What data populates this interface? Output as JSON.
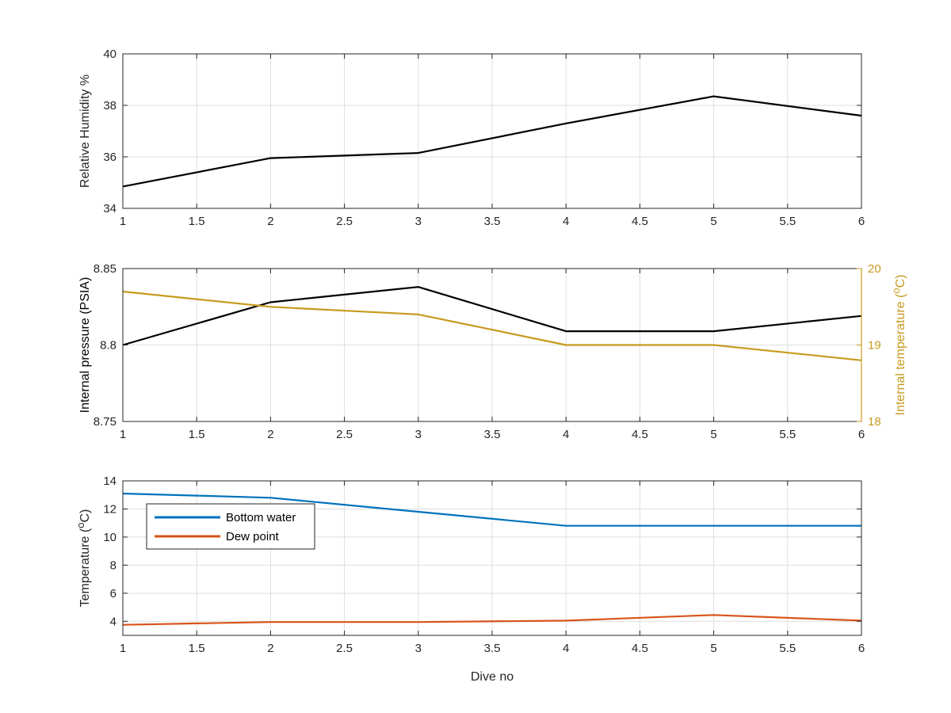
{
  "chart_data": [
    {
      "type": "line",
      "xlabel": "",
      "ylabel": "Relative Humidity %",
      "xlim": [
        1,
        6
      ],
      "ylim": [
        34,
        40
      ],
      "xticks": [
        "1",
        "1.5",
        "2",
        "2.5",
        "3",
        "3.5",
        "4",
        "4.5",
        "5",
        "5.5",
        "6"
      ],
      "yticks": [
        "34",
        "36",
        "38",
        "40"
      ],
      "grid": true,
      "series": [
        {
          "x": [
            1,
            2,
            3,
            4,
            5,
            6
          ],
          "y": [
            34.85,
            35.95,
            36.15,
            37.3,
            38.35,
            37.6
          ],
          "color": "#000000"
        }
      ]
    },
    {
      "type": "line",
      "xlabel": "",
      "ylabel": "Internal pressure (PSIA)",
      "ylabel_right": "Internal temperature (°C)",
      "xlim": [
        1,
        6
      ],
      "ylim": [
        8.75,
        8.85
      ],
      "ylim_right": [
        18,
        20
      ],
      "xticks": [
        "1",
        "1.5",
        "2",
        "2.5",
        "3",
        "3.5",
        "4",
        "4.5",
        "5",
        "5.5",
        "6"
      ],
      "yticks": [
        "8.75",
        "8.8",
        "8.85"
      ],
      "yticks_right": [
        "18",
        "19",
        "20"
      ],
      "grid": true,
      "series": [
        {
          "axis": "left",
          "x": [
            1,
            2,
            3,
            4,
            5,
            6
          ],
          "y": [
            8.8,
            8.828,
            8.838,
            8.809,
            8.809,
            8.819
          ],
          "color": "#000000"
        },
        {
          "axis": "right",
          "x": [
            1,
            2,
            3,
            4,
            5,
            6
          ],
          "y": [
            19.7,
            19.5,
            19.4,
            19.0,
            19.0,
            18.8
          ],
          "color": "#C79A1E"
        }
      ]
    },
    {
      "type": "line",
      "xlabel": "Dive no",
      "ylabel": "Temperature (°C)",
      "xlim": [
        1,
        6
      ],
      "ylim": [
        3,
        14
      ],
      "xticks": [
        "1",
        "1.5",
        "2",
        "2.5",
        "3",
        "3.5",
        "4",
        "4.5",
        "5",
        "5.5",
        "6"
      ],
      "yticks": [
        "4",
        "6",
        "8",
        "10",
        "12",
        "14"
      ],
      "grid": true,
      "legend_position": "upper-left",
      "series": [
        {
          "name": "Bottom water",
          "x": [
            1,
            1.5,
            2,
            3,
            4,
            5,
            6
          ],
          "y": [
            13.1,
            12.95,
            12.8,
            11.8,
            10.8,
            10.8,
            10.8
          ],
          "color": "#0072BD"
        },
        {
          "name": "Dew point",
          "x": [
            1,
            1.5,
            2,
            3,
            4,
            5,
            6
          ],
          "y": [
            3.75,
            3.85,
            3.95,
            3.95,
            4.05,
            4.45,
            4.05
          ],
          "color": "#D95319"
        }
      ]
    }
  ]
}
